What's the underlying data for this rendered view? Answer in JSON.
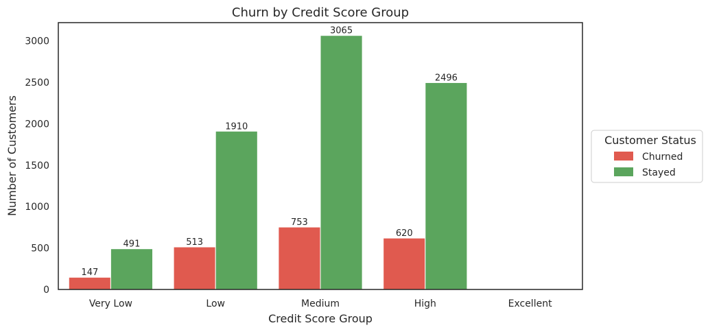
{
  "chart_data": {
    "type": "bar",
    "title": "Churn by Credit Score Group",
    "xlabel": "Credit Score Group",
    "ylabel": "Number of Customers",
    "categories": [
      "Very Low",
      "Low",
      "Medium",
      "High",
      "Excellent"
    ],
    "series": [
      {
        "name": "Churned",
        "color": "#e05a4f",
        "values": [
          147,
          513,
          753,
          620,
          0
        ]
      },
      {
        "name": "Stayed",
        "color": "#5ba55d",
        "values": [
          491,
          1910,
          3065,
          2496,
          0
        ]
      }
    ],
    "ylim": [
      0,
      3220
    ],
    "yticks": [
      0,
      500,
      1000,
      1500,
      2000,
      2500,
      3000
    ],
    "grid": false,
    "legend": {
      "title": "Customer Status",
      "placement": "outside-right"
    }
  }
}
